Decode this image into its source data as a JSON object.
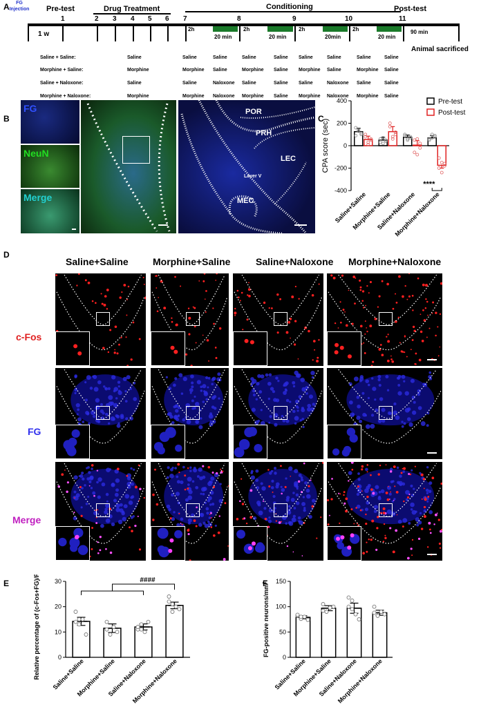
{
  "panelA": {
    "letter": "A",
    "fg_injection": "FG Injection",
    "pretest": "Pre-test",
    "drug_treatment": "Drug Treatment",
    "conditioning": "Conditioning",
    "posttest": "Post-test",
    "one_week": "1 w",
    "days": [
      "1",
      "2",
      "3",
      "4",
      "5",
      "6",
      "7",
      "8",
      "9",
      "10",
      "11"
    ],
    "gaps": [
      "2h",
      "2h",
      "2h",
      "2h",
      "90 min"
    ],
    "sessions": [
      "20 min",
      "20 min",
      "20min",
      "20 min"
    ],
    "sacrificed": "Animal sacrificed",
    "groups": [
      {
        "label": "Saline + Saline:",
        "drug": "Saline",
        "cond": [
          "Saline",
          "Saline",
          "Saline",
          "Saline",
          "Saline",
          "Saline",
          "Saline",
          "Saline"
        ]
      },
      {
        "label": "Morphine + Saline:",
        "drug": "Morphine",
        "cond": [
          "Morphine",
          "Saline",
          "Morphine",
          "Saline",
          "Morphine",
          "Saline",
          "Morphine",
          "Saline"
        ]
      },
      {
        "label": "Saline + Naloxone:",
        "drug": "Saline",
        "cond": [
          "Saline",
          "Naloxone",
          "Saline",
          "Saline",
          "Saline",
          "Naloxone",
          "Saline",
          "Saline"
        ]
      },
      {
        "label": "Morphine + Naloxone:",
        "drug": "Morphine",
        "cond": [
          "Morphine",
          "Naloxone",
          "Morphine",
          "Saline",
          "Morphine",
          "Naloxone",
          "Morphine",
          "Saline"
        ]
      }
    ]
  },
  "panelB": {
    "letter": "B",
    "fg": "FG",
    "neun": "NeuN",
    "merge": "Merge",
    "regions": [
      "POR",
      "PRH",
      "LEC",
      "Layer V",
      "MEC"
    ]
  },
  "panelC": {
    "letter": "C",
    "chart_data": {
      "type": "bar",
      "ylabel": "CPA score (sec)",
      "ylim": [
        -400,
        400
      ],
      "yticks": [
        -400,
        -200,
        0,
        200,
        400
      ],
      "categories": [
        "Saline+Saline",
        "Morphine+Saline",
        "Saline+Naloxone",
        "Morphine+Naloxone"
      ],
      "series": [
        {
          "name": "Pre-test",
          "color": "#000000",
          "values": [
            125,
            50,
            75,
            70
          ],
          "sem": [
            30,
            25,
            20,
            20
          ],
          "points": [
            [
              160,
              130,
              100,
              90,
              140,
              110
            ],
            [
              30,
              70,
              40,
              60,
              20,
              50
            ],
            [
              90,
              60,
              80,
              100,
              50,
              70
            ],
            [
              60,
              100,
              80,
              50,
              70,
              90
            ]
          ]
        },
        {
          "name": "Post-test",
          "color": "#e02020",
          "values": [
            55,
            125,
            5,
            -175
          ],
          "sem": [
            30,
            45,
            40,
            25
          ],
          "points": [
            [
              100,
              30,
              50,
              80,
              10,
              60
            ],
            [
              200,
              60,
              120,
              170,
              80,
              100
            ],
            [
              50,
              -80,
              20,
              -60,
              60,
              -20
            ],
            [
              -110,
              -150,
              -160,
              -200,
              -240,
              -180
            ]
          ]
        }
      ],
      "legend": "top-right",
      "annotation": "****"
    }
  },
  "panelD": {
    "letter": "D",
    "columns": [
      "Saline+Saline",
      "Morphine+Saline",
      "Saline+Naloxone",
      "Morphine+Naloxone"
    ],
    "rows": [
      "c-Fos",
      "FG",
      "Merge"
    ]
  },
  "panelE": {
    "letter": "E",
    "chart_data": {
      "type": "bar",
      "ylabel": "Relative percentage of (c-Fos+FG)/FG(%)",
      "ylim": [
        0,
        30
      ],
      "yticks": [
        0,
        10,
        20,
        30
      ],
      "categories": [
        "Saline+Saline",
        "Morphine+Saline",
        "Saline+Naloxone",
        "Morphine+Naloxone"
      ],
      "values": [
        14.2,
        11.5,
        12.0,
        20.5
      ],
      "sem": [
        1.6,
        1.7,
        1.2,
        1.3
      ],
      "points": [
        [
          18,
          13,
          15,
          9,
          14,
          15
        ],
        [
          14,
          9,
          12,
          10,
          11
        ],
        [
          11,
          13,
          10,
          14,
          12,
          11
        ],
        [
          24,
          21,
          20,
          19,
          22,
          18
        ]
      ],
      "annotation": "####"
    }
  },
  "panelF": {
    "letter": "F",
    "chart_data": {
      "type": "bar",
      "ylabel": "FG-positive neurons/mm",
      "ylabel_sup": "2",
      "ylim": [
        0,
        150
      ],
      "yticks": [
        0,
        50,
        100,
        150
      ],
      "categories": [
        "Saline+Saline",
        "Morphine+Saline",
        "Saline+Naloxone",
        "Morphine+Naloxone"
      ],
      "values": [
        79,
        97,
        97,
        88
      ],
      "sem": [
        3,
        5,
        10,
        5
      ],
      "points": [
        [
          82,
          76,
          80,
          74,
          84,
          80
        ],
        [
          105,
          90,
          98,
          100,
          92
        ],
        [
          118,
          112,
          85,
          75,
          100,
          95
        ],
        [
          100,
          82,
          90,
          85,
          88
        ]
      ]
    }
  }
}
